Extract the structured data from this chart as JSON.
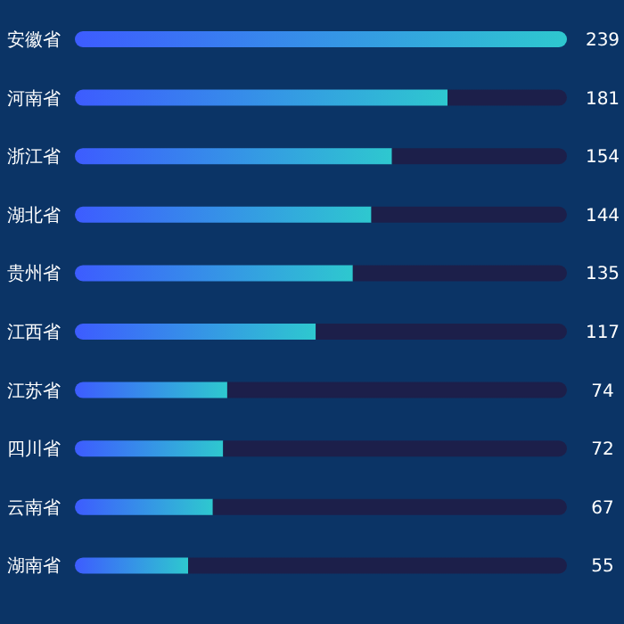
{
  "chart_data": {
    "type": "bar",
    "orientation": "horizontal",
    "stacked": true,
    "tick_labels": "y",
    "categories": [
      "安徽省",
      "河南省",
      "浙江省",
      "湖北省",
      "贵州省",
      "江西省",
      "江苏省",
      "四川省",
      "云南省",
      "湖南省"
    ],
    "series": [
      {
        "color": "#2ec8cf",
        "values": [
          239,
          181,
          154,
          144,
          135,
          117,
          74,
          72,
          67,
          55
        ],
        "value_labels": [
          "239",
          "181",
          "154",
          "144",
          "135",
          "117",
          "74",
          "72",
          "67",
          "55"
        ]
      },
      {
        "color": "#1c1f4a",
        "values": [
          0,
          58,
          85,
          95,
          104,
          122,
          165,
          167,
          172,
          184
        ]
      }
    ]
  }
}
